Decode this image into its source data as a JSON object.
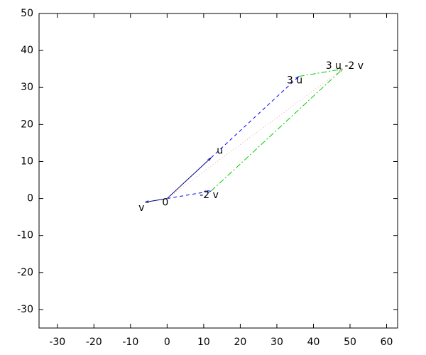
{
  "chart_data": {
    "type": "vector",
    "xlim": [
      -35,
      63
    ],
    "ylim": [
      -35,
      50
    ],
    "xticks": [
      -30,
      -20,
      -10,
      0,
      10,
      20,
      30,
      40,
      50,
      60
    ],
    "yticks": [
      -30,
      -20,
      -10,
      0,
      10,
      20,
      30,
      40,
      50
    ],
    "series": [
      {
        "color": "#000080",
        "dash": "solid",
        "x": [
          0,
          12
        ],
        "y": [
          0,
          11
        ]
      },
      {
        "color": "#000080",
        "dash": "solid",
        "x": [
          0,
          -6
        ],
        "y": [
          0,
          -1
        ]
      },
      {
        "color": "#0000ff",
        "dash": "dashed",
        "x": [
          0,
          12
        ],
        "y": [
          0,
          2
        ]
      },
      {
        "color": "#0000ff",
        "dash": "dashed",
        "x": [
          12,
          36
        ],
        "y": [
          11,
          33
        ]
      },
      {
        "color": "#00cc00",
        "dash": "dashdot",
        "x": [
          12,
          48
        ],
        "y": [
          2,
          35
        ]
      },
      {
        "color": "#00cc00",
        "dash": "dashdot",
        "x": [
          36,
          48
        ],
        "y": [
          33,
          35
        ]
      },
      {
        "color": "#e8a8a0",
        "dash": "dotted",
        "x": [
          0,
          48
        ],
        "y": [
          0,
          35
        ]
      }
    ],
    "points": [
      {
        "label": "0",
        "x": 0,
        "y": 0
      },
      {
        "label": "u",
        "x": 12,
        "y": 11
      },
      {
        "label": "v",
        "x": -6,
        "y": -1
      },
      {
        "label": "3 u",
        "x": 36,
        "y": 33
      },
      {
        "label": "-2 v",
        "x": 12,
        "y": 2
      },
      {
        "label": "3 u -2 v",
        "x": 48,
        "y": 35
      }
    ]
  }
}
